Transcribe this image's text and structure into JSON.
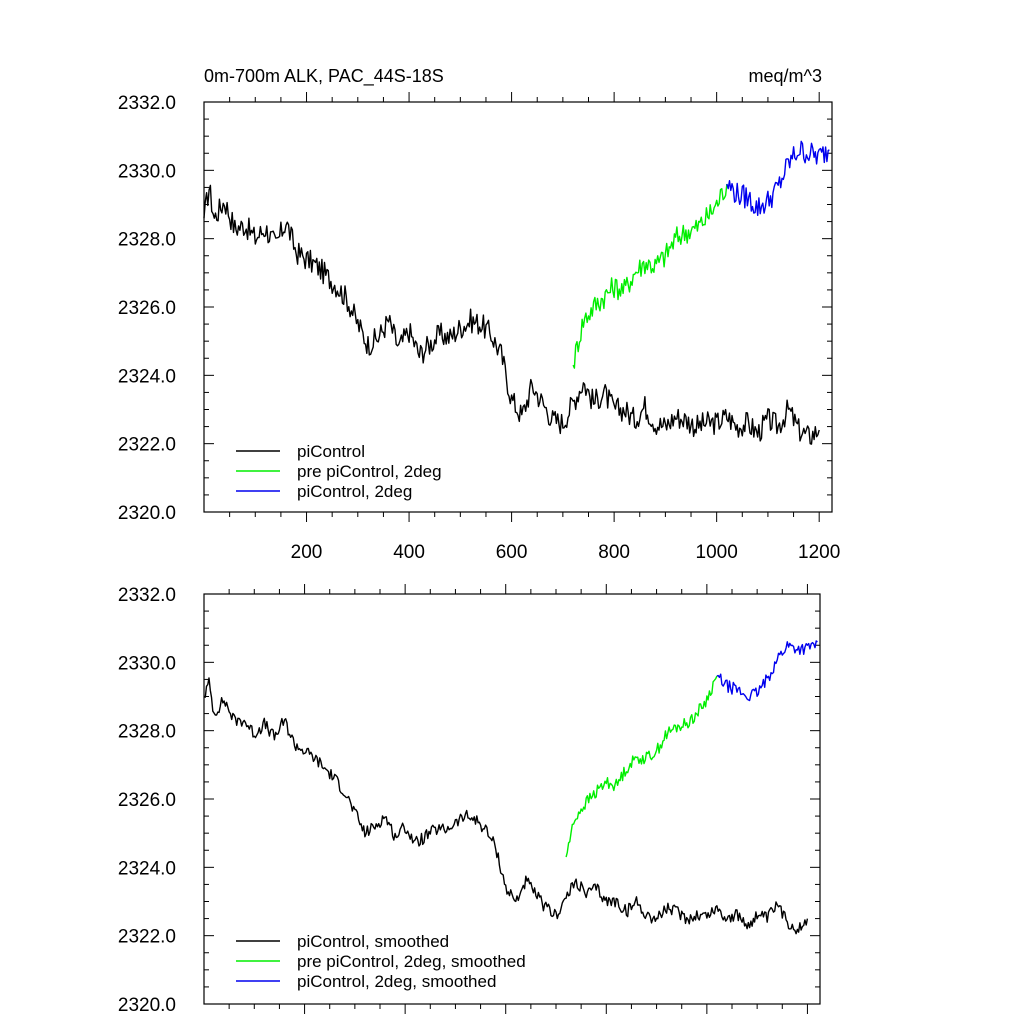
{
  "chart_data": [
    {
      "type": "line",
      "title": "0m-700m ALK, PAC_44S-18S",
      "units_label": "meq/m^3",
      "xlim": [
        0,
        1225
      ],
      "ylim": [
        2320,
        2332
      ],
      "xticks": [
        200,
        400,
        600,
        800,
        1000,
        1200
      ],
      "xtick_labels": [
        "200",
        "400",
        "600",
        "800",
        "1000",
        "1200"
      ],
      "yticks": [
        2320,
        2322,
        2324,
        2326,
        2328,
        2330,
        2332
      ],
      "ytick_labels": [
        "2320.0",
        "2322.0",
        "2324.0",
        "2326.0",
        "2328.0",
        "2330.0",
        "2332.0"
      ],
      "legend_position": "bottom-left",
      "series": [
        {
          "name": "piControl",
          "color": "#000000",
          "x": [
            0,
            10,
            20,
            40,
            60,
            80,
            100,
            120,
            140,
            160,
            180,
            200,
            220,
            240,
            260,
            280,
            300,
            320,
            340,
            360,
            380,
            400,
            420,
            440,
            460,
            480,
            500,
            520,
            540,
            560,
            580,
            600,
            620,
            640,
            660,
            680,
            700,
            720,
            740,
            760,
            780,
            800,
            820,
            840,
            860,
            880,
            900,
            920,
            940,
            960,
            980,
            1000,
            1020,
            1040,
            1060,
            1080,
            1100,
            1120,
            1140,
            1160,
            1180,
            1200
          ],
          "y": [
            2328.6,
            2329.5,
            2328.6,
            2329.1,
            2328.3,
            2328.4,
            2328.0,
            2328.3,
            2327.8,
            2328.5,
            2327.6,
            2327.4,
            2327.2,
            2326.9,
            2326.6,
            2326.2,
            2325.5,
            2324.9,
            2325.1,
            2325.6,
            2324.8,
            2325.3,
            2324.6,
            2324.9,
            2325.2,
            2325.1,
            2325.4,
            2325.6,
            2325.5,
            2325.2,
            2324.6,
            2323.3,
            2322.8,
            2323.7,
            2323.2,
            2322.7,
            2322.6,
            2323.2,
            2323.8,
            2323.2,
            2323.5,
            2323.0,
            2323.0,
            2322.7,
            2323.1,
            2322.6,
            2322.5,
            2322.8,
            2322.7,
            2322.5,
            2322.6,
            2322.6,
            2322.8,
            2322.5,
            2322.6,
            2322.3,
            2322.7,
            2322.5,
            2323.0,
            2322.4,
            2322.2,
            2322.4
          ]
        },
        {
          "name": "pre piControl, 2deg",
          "color": "#00ee00",
          "x": [
            720,
            730,
            740,
            760,
            780,
            800,
            820,
            840,
            860,
            880,
            900,
            920,
            940,
            960,
            980,
            1000,
            1020
          ],
          "y": [
            2324.3,
            2325.0,
            2325.6,
            2326.0,
            2326.3,
            2326.6,
            2326.5,
            2327.0,
            2327.3,
            2327.2,
            2327.5,
            2328.0,
            2328.2,
            2328.3,
            2328.6,
            2329.0,
            2329.6
          ]
        },
        {
          "name": "piControl, 2deg",
          "color": "#0000ee",
          "x": [
            1020,
            1040,
            1060,
            1080,
            1100,
            1120,
            1140,
            1160,
            1180,
            1200,
            1220
          ],
          "y": [
            2329.6,
            2329.3,
            2329.2,
            2328.9,
            2329.1,
            2329.5,
            2330.2,
            2330.6,
            2330.5,
            2330.4,
            2330.6
          ]
        }
      ]
    },
    {
      "type": "line",
      "title": "",
      "units_label": "",
      "xlim": [
        0,
        1225
      ],
      "ylim": [
        2320,
        2332
      ],
      "xticks": [
        200,
        400,
        600,
        800,
        1000,
        1200
      ],
      "xtick_labels": [],
      "yticks": [
        2320,
        2322,
        2324,
        2326,
        2328,
        2330,
        2332
      ],
      "ytick_labels": [
        "2320.0",
        "2322.0",
        "2324.0",
        "2326.0",
        "2328.0",
        "2330.0",
        "2332.0"
      ],
      "legend_position": "bottom-left",
      "series": [
        {
          "name": "piControl, smoothed",
          "color": "#000000",
          "x": [
            0,
            10,
            20,
            40,
            60,
            80,
            100,
            120,
            140,
            160,
            180,
            200,
            220,
            240,
            260,
            280,
            300,
            320,
            340,
            360,
            380,
            400,
            420,
            440,
            460,
            480,
            500,
            520,
            540,
            560,
            580,
            600,
            620,
            640,
            660,
            680,
            700,
            720,
            740,
            760,
            780,
            800,
            820,
            840,
            860,
            880,
            900,
            920,
            940,
            960,
            980,
            1000,
            1020,
            1040,
            1060,
            1080,
            1100,
            1120,
            1140,
            1160,
            1180,
            1200
          ],
          "y": [
            2329.0,
            2329.4,
            2328.5,
            2328.9,
            2328.3,
            2328.3,
            2327.9,
            2328.2,
            2327.8,
            2328.3,
            2327.6,
            2327.4,
            2327.2,
            2326.9,
            2326.6,
            2326.2,
            2325.6,
            2325.0,
            2325.2,
            2325.5,
            2324.9,
            2325.2,
            2324.7,
            2324.9,
            2325.1,
            2325.1,
            2325.3,
            2325.5,
            2325.4,
            2325.1,
            2324.6,
            2323.4,
            2323.0,
            2323.6,
            2323.2,
            2322.8,
            2322.6,
            2323.1,
            2323.6,
            2323.2,
            2323.4,
            2323.0,
            2323.0,
            2322.7,
            2323.0,
            2322.6,
            2322.5,
            2322.8,
            2322.7,
            2322.5,
            2322.6,
            2322.6,
            2322.8,
            2322.5,
            2322.6,
            2322.3,
            2322.6,
            2322.5,
            2322.9,
            2322.4,
            2322.2,
            2322.5
          ]
        },
        {
          "name": "pre piControl, 2deg, smoothed",
          "color": "#00ee00",
          "x": [
            720,
            730,
            740,
            760,
            780,
            800,
            820,
            840,
            860,
            880,
            900,
            920,
            940,
            960,
            980,
            1000,
            1020
          ],
          "y": [
            2324.3,
            2325.0,
            2325.5,
            2325.9,
            2326.2,
            2326.5,
            2326.4,
            2326.9,
            2327.2,
            2327.2,
            2327.4,
            2327.9,
            2328.1,
            2328.2,
            2328.5,
            2328.9,
            2329.6
          ]
        },
        {
          "name": "piControl, 2deg, smoothed",
          "color": "#0000ee",
          "x": [
            1020,
            1040,
            1060,
            1080,
            1100,
            1120,
            1140,
            1160,
            1180,
            1200,
            1220
          ],
          "y": [
            2329.6,
            2329.3,
            2329.2,
            2329.0,
            2329.1,
            2329.5,
            2330.1,
            2330.5,
            2330.4,
            2330.4,
            2330.6
          ]
        }
      ]
    }
  ]
}
